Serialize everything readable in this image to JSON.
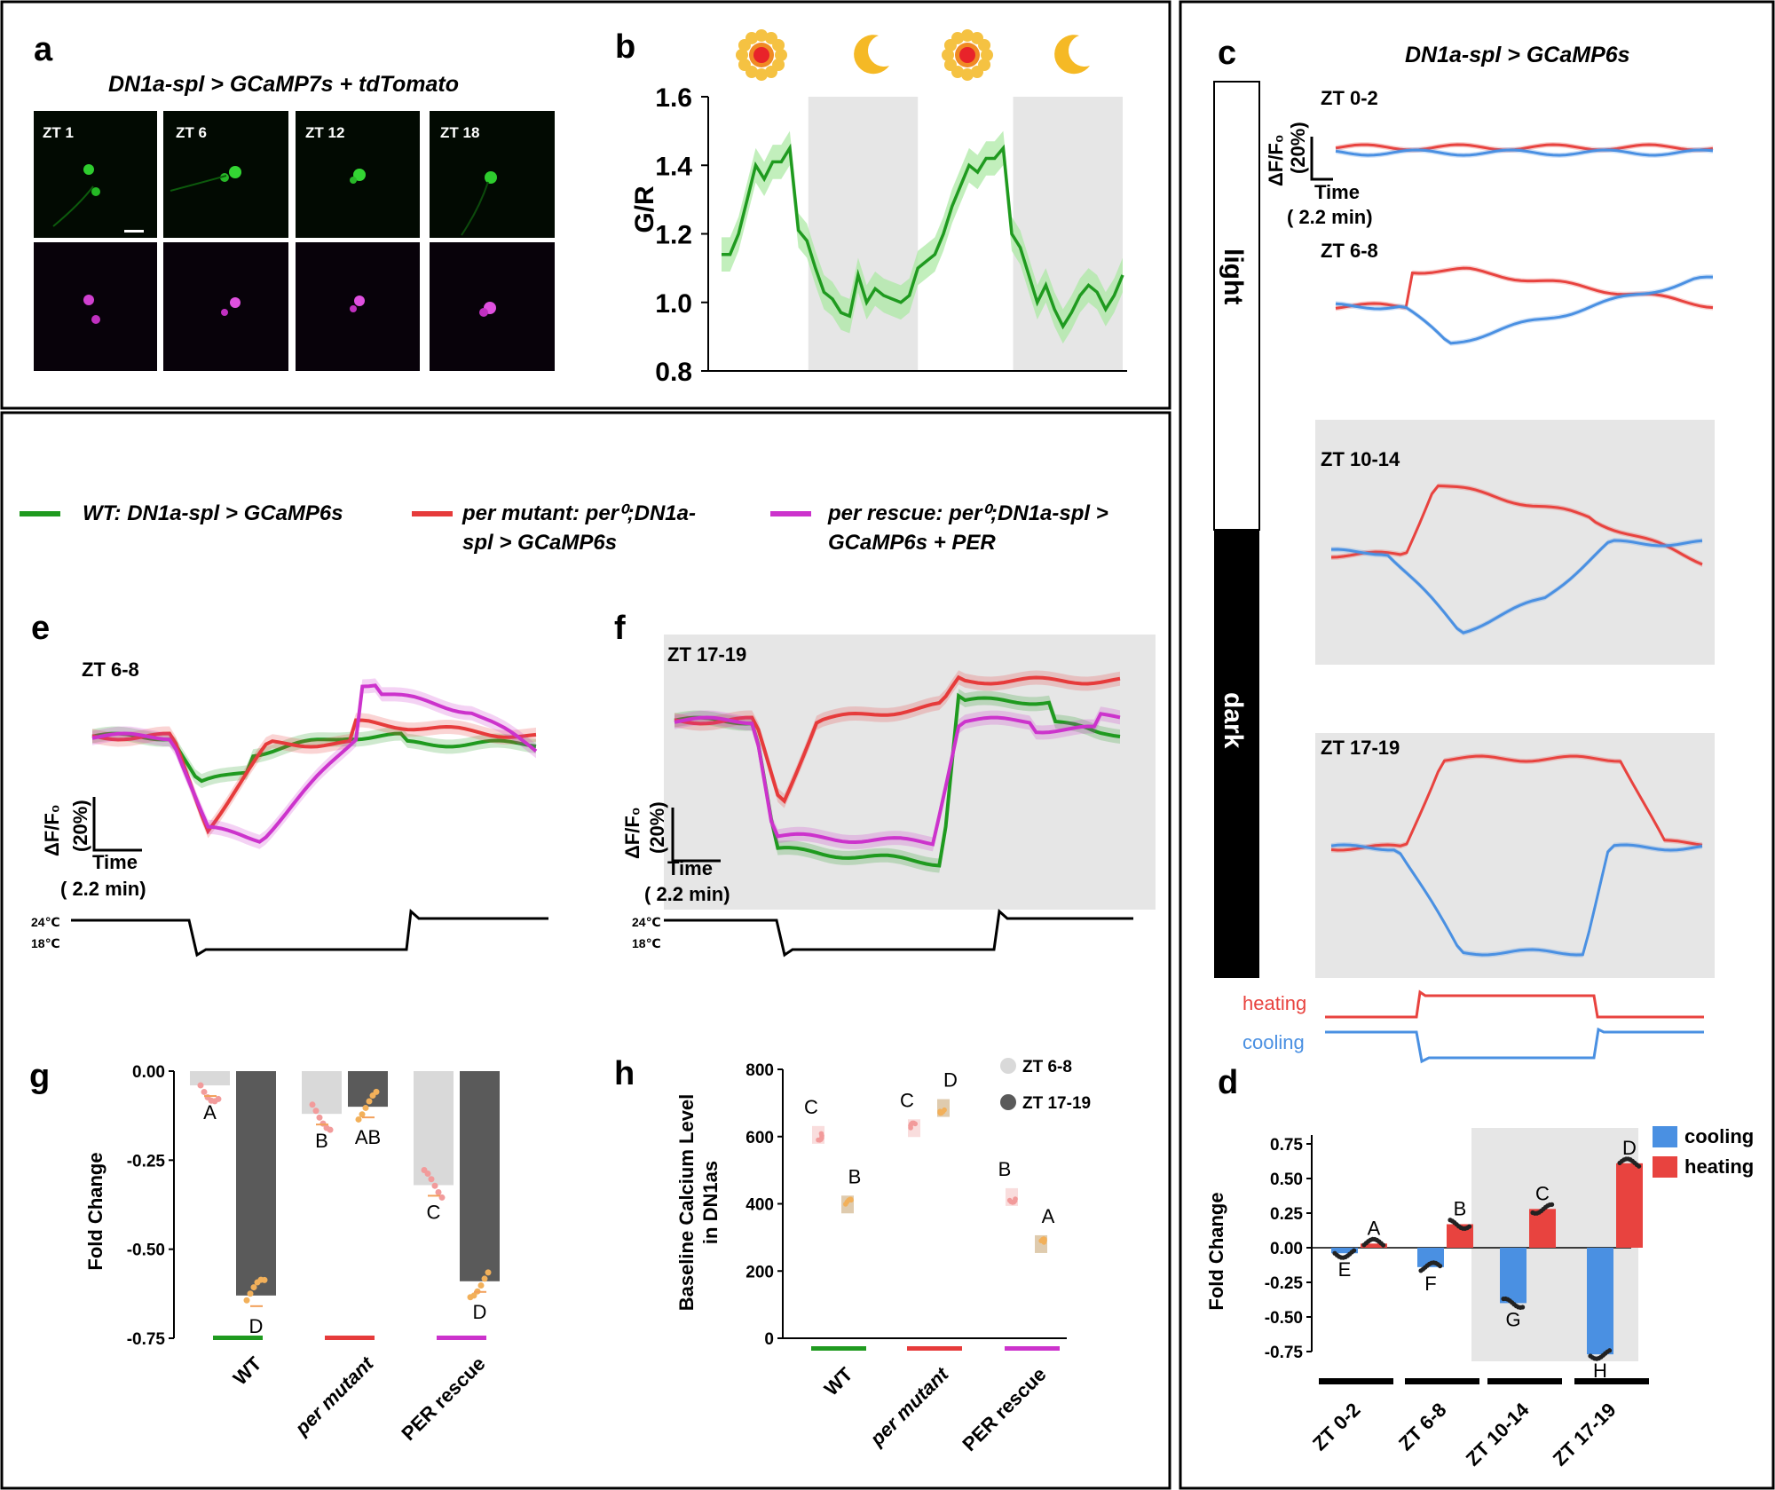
{
  "panels": {
    "a": {
      "label": "a",
      "title": "DN1a-spl > GCaMP7s + tdTomato",
      "images": [
        "ZT 1",
        "ZT 6",
        "ZT 12",
        "ZT 18"
      ]
    },
    "b": {
      "label": "b"
    },
    "c": {
      "label": "c",
      "title": "DN1a-spl > GCaMP6s",
      "bar_light": "light",
      "bar_dark": "dark",
      "windows": [
        "ZT 0-2",
        "ZT 6-8",
        "ZT 10-14",
        "ZT 17-19"
      ],
      "scale_y": "ΔF/F₀",
      "scale_y_pct": "(20%)",
      "scale_x": "Time",
      "scale_x_val": "( 2.2 min)",
      "stim_heating": "heating",
      "stim_cooling": "cooling"
    },
    "d": {
      "label": "d"
    },
    "e": {
      "label": "e",
      "window": "ZT 6-8",
      "scale_y": "ΔF/F₀",
      "scale_y_pct": "(20%)",
      "scale_x": "Time",
      "scale_x_val": "( 2.2 min)",
      "temp_high": "24℃",
      "temp_low": "18℃"
    },
    "f": {
      "label": "f",
      "window": "ZT 17-19",
      "scale_y": "ΔF/F₀",
      "scale_y_pct": "(20%)",
      "scale_x": "Time",
      "scale_x_val": "( 2.2 min)",
      "temp_high": "24℃",
      "temp_low": "18℃"
    },
    "g": {
      "label": "g"
    },
    "h": {
      "label": "h"
    }
  },
  "legend": {
    "wt": "WT: DN1a-spl > GCaMP6s",
    "mut_a": "per mutant: per⁰;DN1a-",
    "mut_b": "spl > GCaMP6s",
    "res_a": "per rescue: per⁰;DN1a-spl >",
    "res_b": "GCaMP6s + PER"
  },
  "colors": {
    "wt": "#1f9a1f",
    "mutant": "#e63b3b",
    "rescue": "#cc33cc",
    "heating": "#e8433f",
    "cooling": "#4a90e2",
    "light_grey": "#d9d9d9",
    "dark_grey": "#5a5a5a",
    "shade": "#e6e6e6"
  },
  "chart_data": [
    {
      "id": "b",
      "type": "line",
      "title": "",
      "xlabel": "",
      "ylabel": "G/R",
      "ylim": [
        0.8,
        1.6
      ],
      "yticks": [
        "0.8",
        "1.0",
        "1.2",
        "1.4",
        "1.6"
      ],
      "icons": [
        "sun",
        "moon",
        "sun",
        "moon"
      ],
      "shaded_dark_periods": [
        [
          24,
          48
        ],
        [
          70,
          94
        ]
      ],
      "series": [
        {
          "name": "G/R",
          "x_count": 94,
          "values": [
            1.14,
            1.14,
            1.2,
            1.3,
            1.4,
            1.36,
            1.41,
            1.41,
            1.45,
            1.21,
            1.18,
            1.1,
            1.03,
            1.01,
            0.97,
            0.96,
            1.08,
            1.0,
            1.04,
            1.02,
            1.01,
            1.0,
            1.02,
            1.1,
            1.12,
            1.14,
            1.2,
            1.28,
            1.34,
            1.4,
            1.38,
            1.42,
            1.42,
            1.45,
            1.2,
            1.16,
            1.08,
            1.0,
            1.05,
            0.98,
            0.93,
            0.97,
            1.02,
            1.05,
            1.03,
            0.98,
            1.02,
            1.08
          ],
          "sd": 0.05
        }
      ]
    },
    {
      "id": "d",
      "type": "bar",
      "xlabel": "",
      "ylabel": "Fold Change",
      "ylim": [
        -0.75,
        0.75
      ],
      "yticks": [
        "0.75",
        "0.50",
        "0.25",
        "0.00",
        "-0.25",
        "-0.50",
        "-0.75"
      ],
      "categories": [
        "ZT 0-2",
        "ZT 6-8",
        "ZT 10-14",
        "ZT 17-19"
      ],
      "legend": [
        "cooling",
        "heating"
      ],
      "series": [
        {
          "name": "cooling",
          "values": [
            -0.04,
            -0.14,
            -0.4,
            -0.77
          ],
          "letters": [
            "E",
            "F",
            "G",
            "H"
          ]
        },
        {
          "name": "heating",
          "values": [
            0.03,
            0.17,
            0.28,
            0.61
          ],
          "letters": [
            "A",
            "B",
            "C",
            "D"
          ]
        }
      ]
    },
    {
      "id": "g",
      "type": "bar",
      "ylabel": "Fold Change",
      "ylim": [
        -0.75,
        0.0
      ],
      "yticks": [
        "0.00",
        "-0.25",
        "-0.50",
        "-0.75"
      ],
      "categories": [
        "WT",
        "per mutant",
        "PER rescue"
      ],
      "series": [
        {
          "name": "ZT 6-8",
          "values": [
            -0.04,
            -0.12,
            -0.32
          ],
          "letters": [
            "A",
            "B",
            "C"
          ]
        },
        {
          "name": "ZT 17-19",
          "values": [
            -0.63,
            -0.1,
            -0.59
          ],
          "letters": [
            "D",
            "AB",
            "D"
          ]
        }
      ]
    },
    {
      "id": "h",
      "type": "scatter",
      "ylabel": "Baseline Calcium Level in DN1as",
      "ylim": [
        0,
        800
      ],
      "yticks": [
        "0",
        "200",
        "400",
        "600",
        "800"
      ],
      "categories": [
        "WT",
        "per mutant",
        "PER rescue"
      ],
      "legend": [
        "ZT 6-8",
        "ZT 17-19"
      ],
      "series": [
        {
          "name": "ZT 6-8",
          "values": [
            605,
            625,
            420
          ],
          "letters": [
            "C",
            "C",
            "B"
          ]
        },
        {
          "name": "ZT 17-19",
          "values": [
            398,
            685,
            280
          ],
          "letters": [
            "B",
            "D",
            "A"
          ]
        }
      ]
    }
  ]
}
